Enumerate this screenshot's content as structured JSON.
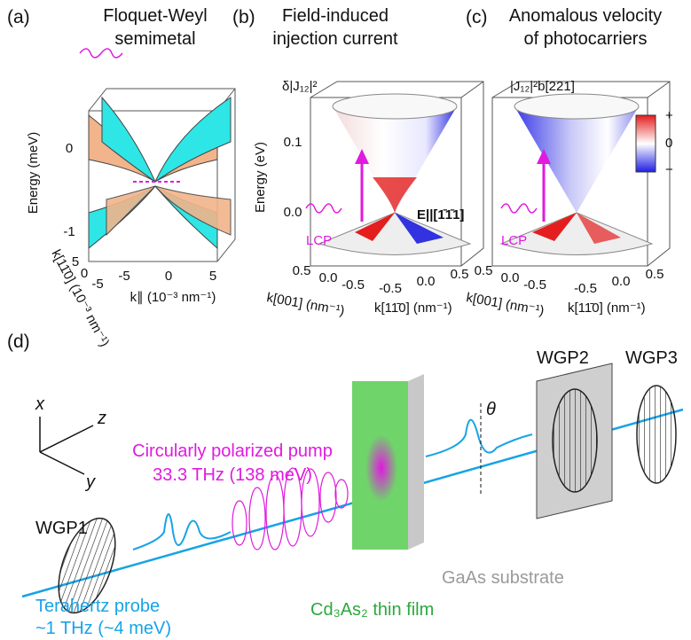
{
  "panel_a": {
    "label": "(a)",
    "title": [
      "Floquet-Weyl",
      "semimetal"
    ],
    "y_axis_label": "Energy (meV)",
    "y_ticks": [
      "0",
      "-1"
    ],
    "k_perp_label": "k[11̄0] (10⁻³ nm⁻¹)",
    "k_perp_ticks": [
      "5",
      "0",
      "-5"
    ],
    "k_par_label": "k∥ (10⁻³ nm⁻¹)",
    "k_par_ticks": [
      "-5",
      "0",
      "5"
    ]
  },
  "panel_b": {
    "label": "(b)",
    "title": [
      "Field-induced",
      "injection current"
    ],
    "quantity": "δ|J₁₂|²",
    "y_axis_label": "Energy (eV)",
    "y_ticks": [
      "0.1",
      "0.0"
    ],
    "pump": "LCP",
    "field": "E||[1̄1̄1]",
    "k001_label": "k[001] (nm⁻¹)",
    "k001_ticks": [
      "0.5",
      "0.0",
      "-0.5"
    ],
    "k110_label": "k[11̄0] (nm⁻¹)",
    "k110_ticks": [
      "-0.5",
      "0.0",
      "0.5"
    ]
  },
  "panel_c": {
    "label": "(c)",
    "title": [
      "Anomalous velocity",
      "of photocarriers"
    ],
    "quantity": "|J₁₂|²b[221]",
    "pump": "LCP",
    "colorbar": [
      "+",
      "0",
      "−"
    ],
    "k001_label": "k[001] (nm⁻¹)",
    "k001_ticks": [
      "0.5",
      "0.0",
      "-0.5"
    ],
    "k110_label": "k[11̄0] (nm⁻¹)",
    "k110_ticks": [
      "-0.5",
      "0.0",
      "0.5"
    ]
  },
  "panel_d": {
    "label": "(d)",
    "axes": [
      "x",
      "z",
      "y"
    ],
    "pump": [
      "Circularly polarized pump",
      "33.3 THz (138 meV)"
    ],
    "wgp1": "WGP1",
    "probe": [
      "Terahertz probe",
      "~1 THz (~4 meV)"
    ],
    "film": "Cd₃As₂ thin film",
    "substrate": "GaAs substrate",
    "angle": "θ",
    "wgp2": "WGP2",
    "wgp3": "WGP3"
  }
}
